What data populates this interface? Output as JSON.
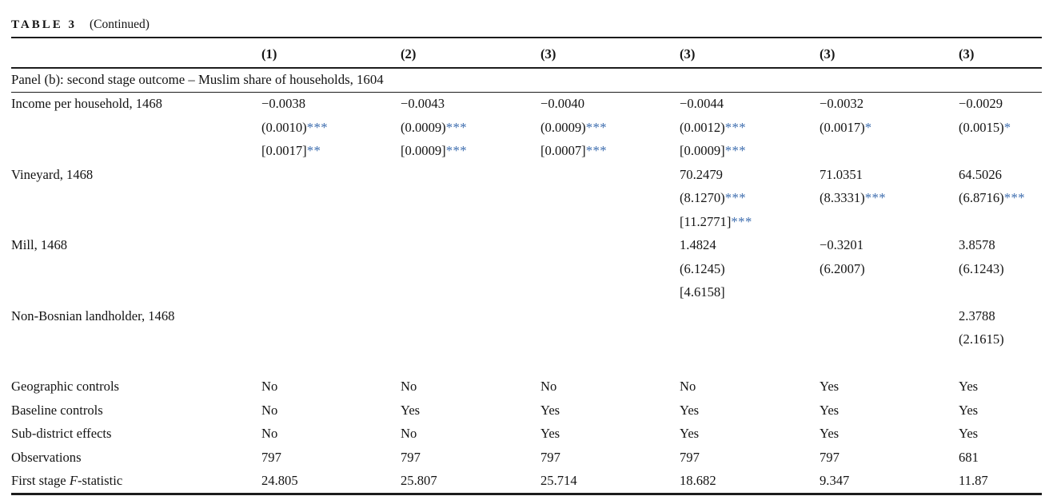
{
  "title": {
    "table_label": "TABLE 3",
    "continued": "(Continued)"
  },
  "columns": [
    "(1)",
    "(2)",
    "(3)",
    "(3)",
    "(3)",
    "(3)"
  ],
  "panel_label": "Panel (b): second stage outcome – Muslim share of households, 1604",
  "colors": {
    "star_blue": "#3c6cae",
    "text": "#141414",
    "rule": "#1c1c1c"
  },
  "coef_rows": [
    {
      "label": "Income per household, 1468",
      "lines": [
        [
          {
            "v": "−0.0038"
          },
          {
            "v": "−0.0043"
          },
          {
            "v": "−0.0040"
          },
          {
            "v": "−0.0044"
          },
          {
            "v": "−0.0032"
          },
          {
            "v": "−0.0029"
          }
        ],
        [
          {
            "v": "(0.0010)",
            "s": "***"
          },
          {
            "v": "(0.0009)",
            "s": "***"
          },
          {
            "v": "(0.0009)",
            "s": "***"
          },
          {
            "v": "(0.0012)",
            "s": "***"
          },
          {
            "v": "(0.0017)",
            "s": "*"
          },
          {
            "v": "(0.0015)",
            "s": "*"
          }
        ],
        [
          {
            "v": "[0.0017]",
            "s": "**"
          },
          {
            "v": "[0.0009]",
            "s": "***"
          },
          {
            "v": "[0.0007]",
            "s": "***"
          },
          {
            "v": "[0.0009]",
            "s": "***"
          },
          null,
          null
        ]
      ]
    },
    {
      "label": "Vineyard, 1468",
      "lines": [
        [
          null,
          null,
          null,
          {
            "v": "70.2479"
          },
          {
            "v": "71.0351"
          },
          {
            "v": "64.5026"
          }
        ],
        [
          null,
          null,
          null,
          {
            "v": "(8.1270)",
            "s": "***"
          },
          {
            "v": "(8.3331)",
            "s": "***"
          },
          {
            "v": "(6.8716)",
            "s": "***"
          }
        ],
        [
          null,
          null,
          null,
          {
            "v": "[11.2771]",
            "s": "***"
          },
          null,
          null
        ]
      ]
    },
    {
      "label": "Mill, 1468",
      "lines": [
        [
          null,
          null,
          null,
          {
            "v": "1.4824"
          },
          {
            "v": "−0.3201"
          },
          {
            "v": "3.8578"
          }
        ],
        [
          null,
          null,
          null,
          {
            "v": "(6.1245)"
          },
          {
            "v": "(6.2007)"
          },
          {
            "v": "(6.1243)"
          }
        ],
        [
          null,
          null,
          null,
          {
            "v": "[4.6158]"
          },
          null,
          null
        ]
      ]
    },
    {
      "label": "Non-Bosnian landholder, 1468",
      "lines": [
        [
          null,
          null,
          null,
          null,
          null,
          {
            "v": "2.3788"
          }
        ],
        [
          null,
          null,
          null,
          null,
          null,
          {
            "v": "(2.1615)"
          }
        ]
      ]
    }
  ],
  "footer_rows": [
    {
      "label": "Geographic controls",
      "lines": [
        [
          {
            "v": "No"
          },
          {
            "v": "No"
          },
          {
            "v": "No"
          },
          {
            "v": "No"
          },
          {
            "v": "Yes"
          },
          {
            "v": "Yes"
          }
        ]
      ]
    },
    {
      "label": "Baseline controls",
      "lines": [
        [
          {
            "v": "No"
          },
          {
            "v": "Yes"
          },
          {
            "v": "Yes"
          },
          {
            "v": "Yes"
          },
          {
            "v": "Yes"
          },
          {
            "v": "Yes"
          }
        ]
      ]
    },
    {
      "label": "Sub-district effects",
      "lines": [
        [
          {
            "v": "No"
          },
          {
            "v": "No"
          },
          {
            "v": "Yes"
          },
          {
            "v": "Yes"
          },
          {
            "v": "Yes"
          },
          {
            "v": "Yes"
          }
        ]
      ]
    },
    {
      "label": "Observations",
      "lines": [
        [
          {
            "v": "797"
          },
          {
            "v": "797"
          },
          {
            "v": "797"
          },
          {
            "v": "797"
          },
          {
            "v": "797"
          },
          {
            "v": "681"
          }
        ]
      ]
    },
    {
      "label_parts": [
        {
          "t": "First stage "
        },
        {
          "t": "F",
          "i": true
        },
        {
          "t": "-statistic"
        }
      ],
      "label": "First stage F-statistic",
      "lines": [
        [
          {
            "v": "24.805"
          },
          {
            "v": "25.807"
          },
          {
            "v": "25.714"
          },
          {
            "v": "18.682"
          },
          {
            "v": "9.347"
          },
          {
            "v": "11.87"
          }
        ]
      ]
    }
  ]
}
